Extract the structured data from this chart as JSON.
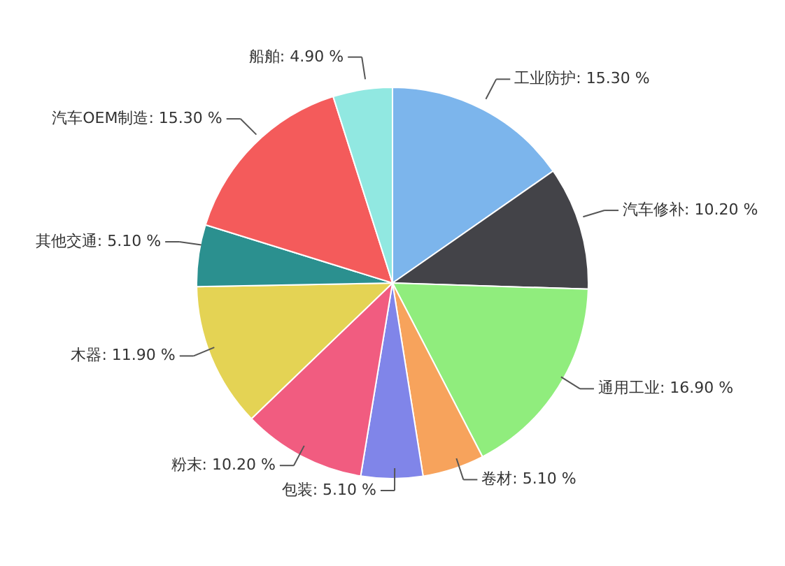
{
  "chart_data": {
    "type": "pie",
    "categories": [
      "工业防护",
      "汽车修补",
      "通用工业",
      "卷材",
      "包装",
      "粉末",
      "木器",
      "其他交通",
      "汽车OEM制造",
      "船舶"
    ],
    "values": [
      15.3,
      10.2,
      16.9,
      5.1,
      5.1,
      10.2,
      11.9,
      5.1,
      15.3,
      4.9
    ],
    "value_labels": [
      "15.30 %",
      "10.20 %",
      "16.90 %",
      "5.10 %",
      "5.10 %",
      "10.20 %",
      "11.90 %",
      "5.10 %",
      "15.30 %",
      "4.90 %"
    ],
    "colors": [
      "#7cb5ec",
      "#434348",
      "#90ed7d",
      "#f7a35c",
      "#8085e9",
      "#f15c80",
      "#e4d354",
      "#2b908f",
      "#f45b5b",
      "#91e8e1"
    ]
  }
}
